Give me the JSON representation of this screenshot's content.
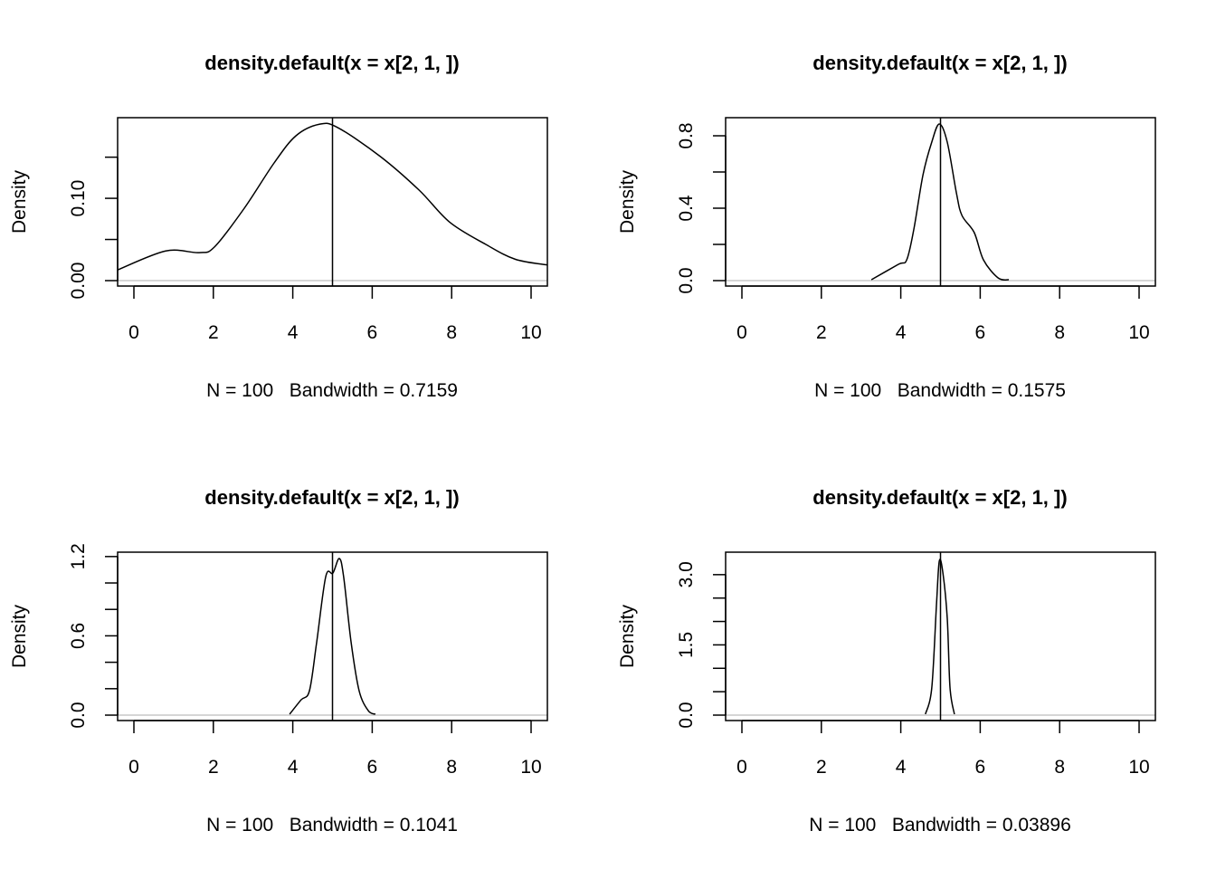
{
  "chart_data": [
    {
      "type": "line",
      "title": "density.default(x = x[2, 1, ])",
      "xlabel": "N = 100   Bandwidth = 0.7159",
      "ylabel": "Density",
      "xlim": [
        -0.41,
        10.41
      ],
      "ylim": [
        -0.0066,
        0.198
      ],
      "xticks": [
        0,
        2,
        4,
        6,
        8,
        10
      ],
      "xtick_labels": [
        "0",
        "2",
        "4",
        "6",
        "8",
        "10"
      ],
      "yticks": [
        0,
        0.05,
        0.1,
        0.15
      ],
      "ytick_labels": [
        {
          "value": 0,
          "label": "0.00"
        },
        {
          "value": 0.1,
          "label": "0.10"
        }
      ],
      "vline": 5,
      "x": [
        -0.41,
        0.8,
        1.64,
        2.03,
        2.78,
        3.53,
        4.08,
        4.67,
        5.13,
        6.2,
        7.18,
        7.95,
        8.86,
        9.6,
        10.41
      ],
      "y": [
        0.013,
        0.036,
        0.034,
        0.041,
        0.088,
        0.143,
        0.176,
        0.19,
        0.186,
        0.151,
        0.11,
        0.071,
        0.044,
        0.026,
        0.019
      ]
    },
    {
      "type": "line",
      "title": "density.default(x = x[2, 1, ])",
      "xlabel": "N = 100   Bandwidth = 0.1575",
      "ylabel": "Density",
      "xlim": [
        -0.41,
        10.41
      ],
      "ylim": [
        -0.03,
        0.9
      ],
      "xticks": [
        0,
        2,
        4,
        6,
        8,
        10
      ],
      "xtick_labels": [
        "0",
        "2",
        "4",
        "6",
        "8",
        "10"
      ],
      "yticks": [
        0,
        0.2,
        0.4,
        0.6,
        0.8
      ],
      "ytick_labels": [
        {
          "value": 0,
          "label": "0.0"
        },
        {
          "value": 0.4,
          "label": "0.4"
        },
        {
          "value": 0.8,
          "label": "0.8"
        }
      ],
      "vline": 5,
      "x": [
        3.26,
        3.94,
        4.15,
        4.33,
        4.56,
        4.78,
        4.97,
        5.17,
        5.4,
        5.54,
        5.85,
        6.08,
        6.45,
        6.72
      ],
      "y": [
        0.005,
        0.09,
        0.115,
        0.285,
        0.585,
        0.765,
        0.865,
        0.765,
        0.485,
        0.36,
        0.265,
        0.115,
        0.015,
        0.005
      ]
    },
    {
      "type": "line",
      "title": "density.default(x = x[2, 1, ])",
      "xlabel": "N = 100   Bandwidth = 0.1041",
      "ylabel": "Density",
      "xlim": [
        -0.41,
        10.41
      ],
      "ylim": [
        -0.041,
        1.233
      ],
      "xticks": [
        0,
        2,
        4,
        6,
        8,
        10
      ],
      "xtick_labels": [
        "0",
        "2",
        "4",
        "6",
        "8",
        "10"
      ],
      "yticks": [
        0,
        0.2,
        0.4,
        0.6,
        0.8,
        1.0,
        1.2
      ],
      "ytick_labels": [
        {
          "value": 0,
          "label": "0.0"
        },
        {
          "value": 0.6,
          "label": "0.6"
        },
        {
          "value": 1.2,
          "label": "1.2"
        }
      ],
      "vline": 5,
      "x": [
        3.92,
        4.21,
        4.42,
        4.6,
        4.83,
        5.01,
        5.17,
        5.28,
        5.47,
        5.67,
        5.9,
        6.08
      ],
      "y": [
        0.007,
        0.116,
        0.185,
        0.548,
        1.048,
        1.075,
        1.185,
        1.048,
        0.548,
        0.185,
        0.034,
        0.007
      ]
    },
    {
      "type": "line",
      "title": "density.default(x = x[2, 1, ])",
      "xlabel": "N = 100   Bandwidth = 0.03896",
      "ylabel": "Density",
      "xlim": [
        -0.41,
        10.41
      ],
      "ylim": [
        -0.116,
        3.48
      ],
      "xticks": [
        0,
        2,
        4,
        6,
        8,
        10
      ],
      "xtick_labels": [
        "0",
        "2",
        "4",
        "6",
        "8",
        "10"
      ],
      "yticks": [
        0,
        0.5,
        1.0,
        1.5,
        2.0,
        2.5,
        3.0
      ],
      "ytick_labels": [
        {
          "value": 0,
          "label": "0.0"
        },
        {
          "value": 1.5,
          "label": "1.5"
        },
        {
          "value": 3.0,
          "label": "3.0"
        }
      ],
      "vline": 5,
      "x": [
        4.62,
        4.78,
        4.9,
        4.97,
        5.06,
        5.17,
        5.24,
        5.35
      ],
      "y": [
        0.02,
        0.58,
        2.38,
        3.29,
        3.04,
        2.07,
        0.58,
        0.02
      ]
    }
  ]
}
